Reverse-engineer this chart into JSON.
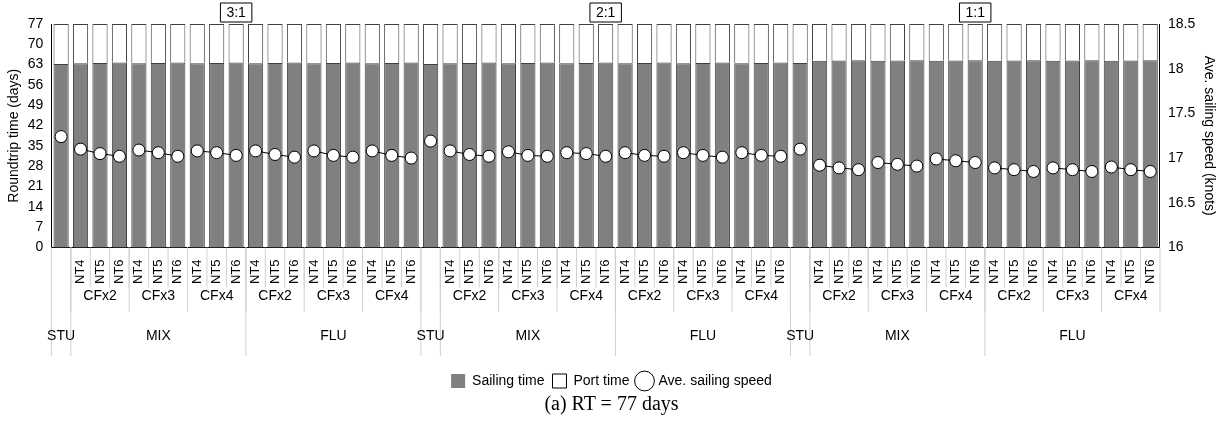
{
  "chart_data": {
    "type": "bar",
    "title": "(a) RT = 77 days",
    "stacked": true,
    "legend": "bottom",
    "ylabel": "Roundtrip time (days)",
    "y2label": "Ave. sailing speed (knots)",
    "ylim": [
      0,
      77
    ],
    "yticks": [
      0,
      7,
      14,
      21,
      28,
      35,
      42,
      49,
      56,
      63,
      70,
      77
    ],
    "y2lim": [
      16,
      18.5
    ],
    "y2ticks": [
      16,
      16.5,
      17,
      17.5,
      18,
      18.5
    ],
    "marker": "circle",
    "categories": [
      null,
      "NT4",
      "NT5",
      "NT6",
      "NT4",
      "NT5",
      "NT6",
      "NT4",
      "NT5",
      "NT6",
      "NT4",
      "NT5",
      "NT6",
      "NT4",
      "NT5",
      "NT6",
      "NT4",
      "NT5",
      "NT6",
      null,
      "NT4",
      "NT5",
      "NT6",
      "NT4",
      "NT5",
      "NT6",
      "NT4",
      "NT5",
      "NT6",
      "NT4",
      "NT5",
      "NT6",
      "NT4",
      "NT5",
      "NT6",
      "NT4",
      "NT5",
      "NT6",
      null,
      "NT4",
      "NT5",
      "NT6",
      "NT4",
      "NT5",
      "NT6",
      "NT4",
      "NT5",
      "NT6",
      "NT4",
      "NT5",
      "NT6",
      "NT4",
      "NT5",
      "NT6",
      "NT4",
      "NT5",
      "NT6"
    ],
    "series": [
      {
        "name": "Sailing time",
        "type": "bar",
        "color": "#808080",
        "values": [
          63.2,
          63.5,
          63.6,
          63.7,
          63.5,
          63.6,
          63.7,
          63.5,
          63.6,
          63.7,
          63.5,
          63.6,
          63.7,
          63.5,
          63.6,
          63.7,
          63.5,
          63.6,
          63.7,
          63.2,
          63.5,
          63.6,
          63.7,
          63.5,
          63.6,
          63.7,
          63.5,
          63.6,
          63.7,
          63.5,
          63.6,
          63.7,
          63.5,
          63.6,
          63.7,
          63.5,
          63.6,
          63.7,
          63.6,
          64.3,
          64.4,
          64.5,
          64.3,
          64.4,
          64.5,
          64.3,
          64.4,
          64.5,
          64.3,
          64.4,
          64.5,
          64.3,
          64.4,
          64.5,
          64.3,
          64.4,
          64.5
        ]
      },
      {
        "name": "Port time",
        "type": "bar",
        "color": "#ffffff",
        "values": [
          13.8,
          13.5,
          13.4,
          13.3,
          13.5,
          13.4,
          13.3,
          13.5,
          13.4,
          13.3,
          13.5,
          13.4,
          13.3,
          13.5,
          13.4,
          13.3,
          13.5,
          13.4,
          13.3,
          13.8,
          13.5,
          13.4,
          13.3,
          13.5,
          13.4,
          13.3,
          13.5,
          13.4,
          13.3,
          13.5,
          13.4,
          13.3,
          13.5,
          13.4,
          13.3,
          13.5,
          13.4,
          13.3,
          13.4,
          12.7,
          12.6,
          12.5,
          12.7,
          12.6,
          12.5,
          12.7,
          12.6,
          12.5,
          12.7,
          12.6,
          12.5,
          12.7,
          12.6,
          12.5,
          12.7,
          12.6,
          12.5
        ]
      },
      {
        "name": "Ave. sailing speed",
        "type": "line",
        "axis": "y2",
        "color": "#ffffff",
        "values": [
          null,
          17.1,
          17.05,
          17.02,
          17.09,
          17.06,
          17.02,
          17.08,
          17.06,
          17.03,
          17.08,
          17.04,
          17.01,
          17.08,
          17.03,
          17.01,
          17.08,
          17.03,
          17.0,
          null,
          17.08,
          17.04,
          17.02,
          17.07,
          17.03,
          17.02,
          17.06,
          17.05,
          17.02,
          17.06,
          17.03,
          17.02,
          17.06,
          17.03,
          17.01,
          17.06,
          17.03,
          17.02,
          null,
          16.92,
          16.89,
          16.87,
          16.95,
          16.93,
          16.91,
          16.99,
          16.97,
          16.95,
          16.89,
          16.87,
          16.85,
          16.89,
          16.87,
          16.85,
          16.9,
          16.87,
          16.85
        ]
      },
      {
        "type": "scatter",
        "axis": "y2",
        "color": "#ffffff",
        "values": [
          17.24,
          null,
          null,
          null,
          null,
          null,
          null,
          null,
          null,
          null,
          null,
          null,
          null,
          null,
          null,
          null,
          null,
          null,
          null,
          17.19,
          null,
          null,
          null,
          null,
          null,
          null,
          null,
          null,
          null,
          null,
          null,
          null,
          null,
          null,
          null,
          null,
          null,
          null,
          17.1,
          null,
          null,
          null,
          null,
          null,
          null,
          null,
          null,
          null,
          null,
          null,
          null,
          null,
          null,
          null,
          null,
          null,
          null
        ]
      }
    ],
    "annotations": [
      "3:1",
      "STU",
      "MIX",
      "FLU",
      "CFx2",
      "CFx3",
      "CFx4",
      "CFx2",
      "CFx3",
      "CFx4",
      "2:1",
      "STU",
      "MIX",
      "FLU",
      "CFx2",
      "CFx3",
      "CFx4",
      "CFx2",
      "CFx3",
      "CFx4",
      "1:1",
      "STU",
      "MIX",
      "FLU",
      "CFx2",
      "CFx3",
      "CFx4",
      "CFx2",
      "CFx3",
      "CFx4"
    ]
  }
}
